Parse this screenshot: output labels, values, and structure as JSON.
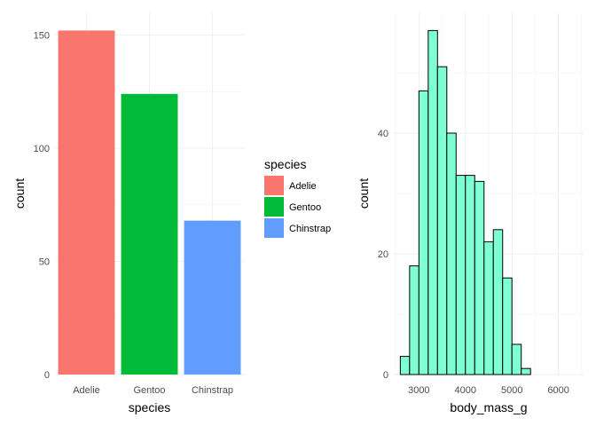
{
  "chart_data": [
    {
      "type": "bar",
      "xlabel": "species",
      "ylabel": "count",
      "categories": [
        "Adelie",
        "Gentoo",
        "Chinstrap"
      ],
      "values": [
        152,
        124,
        68
      ],
      "colors": [
        "#F8766D",
        "#00BA38",
        "#619CFF"
      ],
      "ylim": [
        0,
        160
      ],
      "yticks": [
        0,
        50,
        100,
        150
      ],
      "grid": true,
      "legend": {
        "title": "species",
        "placement": "right",
        "entries": [
          "Adelie",
          "Gentoo",
          "Chinstrap"
        ]
      }
    },
    {
      "type": "histogram",
      "xlabel": "body_mass_g",
      "ylabel": "count",
      "bin_width": 200,
      "bins": [
        {
          "x0": 2600,
          "x1": 2800,
          "count": 3
        },
        {
          "x0": 2800,
          "x1": 3000,
          "count": 18
        },
        {
          "x0": 3000,
          "x1": 3200,
          "count": 47
        },
        {
          "x0": 3200,
          "x1": 3400,
          "count": 57
        },
        {
          "x0": 3400,
          "x1": 3600,
          "count": 51
        },
        {
          "x0": 3600,
          "x1": 3800,
          "count": 40
        },
        {
          "x0": 3800,
          "x1": 4000,
          "count": 33
        },
        {
          "x0": 4000,
          "x1": 4200,
          "count": 33
        },
        {
          "x0": 4200,
          "x1": 4400,
          "count": 32
        },
        {
          "x0": 4400,
          "x1": 4600,
          "count": 22
        },
        {
          "x0": 4600,
          "x1": 4800,
          "count": 24
        },
        {
          "x0": 4800,
          "x1": 5000,
          "count": 16
        },
        {
          "x0": 5000,
          "x1": 5200,
          "count": 5
        },
        {
          "x0": 5200,
          "x1": 5400,
          "count": 1
        }
      ],
      "fill": "#7FFFD4",
      "stroke": "#000000",
      "xticks": [
        3000,
        4000,
        5000,
        6000
      ],
      "yticks": [
        0,
        20,
        40
      ],
      "grid": true
    }
  ]
}
